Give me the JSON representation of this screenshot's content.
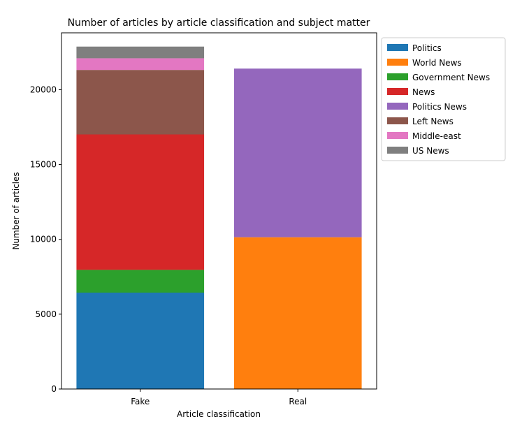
{
  "chart_data": {
    "type": "bar",
    "stacked": true,
    "title": "Number of articles by article classification and subject matter",
    "xlabel": "Article classification",
    "ylabel": "Number of articles",
    "categories": [
      "Fake",
      "Real"
    ],
    "ylim": [
      0,
      23800
    ],
    "yticks": [
      0,
      5000,
      10000,
      15000,
      20000
    ],
    "grid": false,
    "legend_position": "outside-top-right",
    "series": [
      {
        "name": "Politics",
        "color": "#1f77b4",
        "values": [
          6440,
          0
        ]
      },
      {
        "name": "World News",
        "color": "#ff7f0e",
        "values": [
          0,
          10140
        ]
      },
      {
        "name": "Government News",
        "color": "#2ca02c",
        "values": [
          1520,
          0
        ]
      },
      {
        "name": "News",
        "color": "#d62728",
        "values": [
          9050,
          0
        ]
      },
      {
        "name": "Politics News",
        "color": "#9467bd",
        "values": [
          0,
          11270
        ]
      },
      {
        "name": "Left News",
        "color": "#8c564b",
        "values": [
          4310,
          0
        ]
      },
      {
        "name": "Middle-east",
        "color": "#e377c2",
        "values": [
          780,
          0
        ]
      },
      {
        "name": "US News",
        "color": "#7f7f7f",
        "values": [
          780,
          0
        ]
      }
    ]
  }
}
